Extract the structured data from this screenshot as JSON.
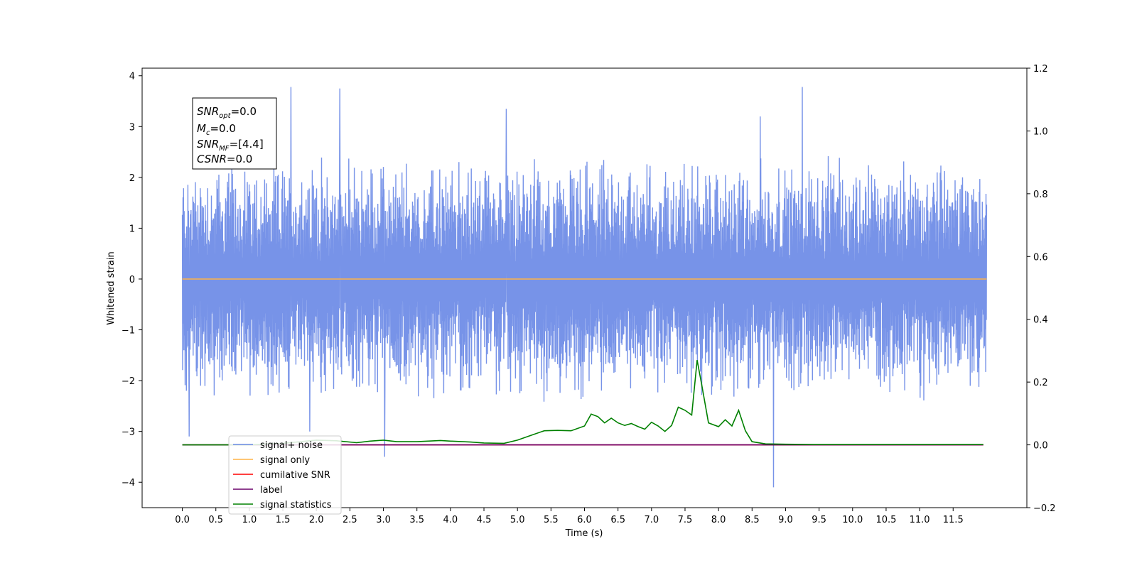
{
  "chart_data": {
    "type": "line",
    "xlabel": "Time (s)",
    "ylabel": "Whitened strain",
    "xlim": [
      -0.6,
      12.6
    ],
    "ylim": [
      -4.5,
      4.15
    ],
    "ylim_right": [
      -0.2,
      1.2
    ],
    "x_ticks": [
      "0.0",
      "0.5",
      "1.0",
      "1.5",
      "2.0",
      "2.5",
      "3.0",
      "3.5",
      "4.0",
      "4.5",
      "5.0",
      "5.5",
      "6.0",
      "6.5",
      "7.0",
      "7.5",
      "8.0",
      "8.5",
      "9.0",
      "9.5",
      "10.0",
      "10.5",
      "11.0",
      "11.5"
    ],
    "y_ticks": [
      "−4",
      "−3",
      "−2",
      "−1",
      "0",
      "1",
      "2",
      "3",
      "4"
    ],
    "y_ticks_right": [
      "−0.2",
      "0.0",
      "0.2",
      "0.4",
      "0.6",
      "0.8",
      "1.0",
      "1.2"
    ],
    "grid": false,
    "legend_position": "lower-left",
    "annotation": {
      "line1_main": "SNR",
      "line1_sub": "opt",
      "line1_value": "=0.0",
      "line2_main": "M",
      "line2_sub": "c",
      "line2_value": "=0.0",
      "line3_main": "SNR",
      "line3_sub": "MF",
      "line3_value": "=[4.4]",
      "line4_main": "CSNR",
      "line4_value": "=0.0"
    },
    "series": [
      {
        "name": "signal+ noise",
        "color": "#6b8ae6",
        "axis": "left",
        "x_range": [
          0.0,
          12.0
        ],
        "envelope_upper_approx": 2.4,
        "envelope_lower_approx": -2.4,
        "spikes": [
          {
            "x": 0.1,
            "y": -3.1
          },
          {
            "x": 1.62,
            "y": 3.78
          },
          {
            "x": 2.35,
            "y": 3.75
          },
          {
            "x": 3.02,
            "y": -3.5
          },
          {
            "x": 4.83,
            "y": 3.35
          },
          {
            "x": 8.82,
            "y": -4.1
          },
          {
            "x": 9.25,
            "y": 3.78
          },
          {
            "x": 8.62,
            "y": 3.2
          },
          {
            "x": 1.9,
            "y": -3.0
          }
        ]
      },
      {
        "name": "signal only",
        "color": "#ffb347",
        "axis": "left",
        "x": [
          0.0,
          12.0
        ],
        "y": [
          0.0,
          0.0
        ]
      },
      {
        "name": "cumilative SNR",
        "color": "#ff0000",
        "axis": "right",
        "x": [
          0.0,
          11.95
        ],
        "y": [
          0.0,
          0.0
        ]
      },
      {
        "name": "label",
        "color": "#6a006a",
        "axis": "right",
        "x": [
          0.0,
          11.95
        ],
        "y": [
          0.0,
          0.0
        ]
      },
      {
        "name": "signal statistics",
        "color": "#008000",
        "axis": "right",
        "x": [
          0.0,
          0.5,
          1.0,
          1.5,
          2.0,
          2.3,
          2.6,
          2.8,
          3.0,
          3.2,
          3.5,
          3.85,
          4.0,
          4.3,
          4.5,
          4.8,
          5.0,
          5.2,
          5.4,
          5.6,
          5.8,
          6.0,
          6.1,
          6.2,
          6.3,
          6.4,
          6.5,
          6.6,
          6.7,
          6.8,
          6.9,
          7.0,
          7.1,
          7.2,
          7.3,
          7.4,
          7.5,
          7.6,
          7.68,
          7.75,
          7.85,
          8.0,
          8.1,
          8.2,
          8.3,
          8.4,
          8.5,
          8.7,
          9.0,
          9.5,
          10.0,
          11.0,
          11.95
        ],
        "y": [
          0.0,
          0.0,
          0.0,
          0.005,
          0.015,
          0.013,
          0.007,
          0.012,
          0.015,
          0.01,
          0.01,
          0.014,
          0.012,
          0.009,
          0.006,
          0.005,
          0.015,
          0.03,
          0.045,
          0.046,
          0.045,
          0.06,
          0.098,
          0.09,
          0.07,
          0.085,
          0.07,
          0.062,
          0.068,
          0.058,
          0.05,
          0.072,
          0.06,
          0.043,
          0.062,
          0.12,
          0.11,
          0.095,
          0.27,
          0.19,
          0.07,
          0.058,
          0.08,
          0.06,
          0.11,
          0.045,
          0.01,
          0.003,
          0.002,
          0.001,
          0.001,
          0.001,
          0.001
        ]
      }
    ]
  }
}
